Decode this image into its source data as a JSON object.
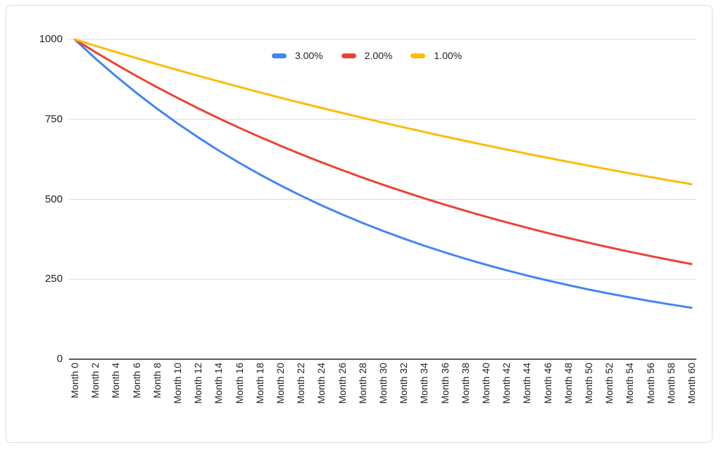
{
  "colors": {
    "background": "#ffffff",
    "card_border": "#dadce0",
    "gridline": "#d9d9d9",
    "axis_line": "#424242",
    "tick_label": "#222222",
    "series_blue": "#4285f4",
    "series_red": "#ea4335",
    "series_yellow": "#fbbc04"
  },
  "chart_data": {
    "type": "line",
    "title": "",
    "xlabel": "",
    "ylabel": "",
    "grid": true,
    "legend_position": "top-center",
    "ylim": [
      0,
      1000
    ],
    "yticks": [
      0,
      250,
      500,
      750,
      1000
    ],
    "categories": [
      "Month 0",
      "Month 2",
      "Month 4",
      "Month 6",
      "Month 8",
      "Month 10",
      "Month 12",
      "Month 14",
      "Month 16",
      "Month 18",
      "Month 20",
      "Month 22",
      "Month 24",
      "Month 26",
      "Month 28",
      "Month 30",
      "Month 32",
      "Month 34",
      "Month 36",
      "Month 38",
      "Month 40",
      "Month 42",
      "Month 44",
      "Month 46",
      "Month 48",
      "Month 50",
      "Month 52",
      "Month 54",
      "Month 56",
      "Month 58",
      "Month 60"
    ],
    "series": [
      {
        "name": "3.00%",
        "color": "#4285f4",
        "values": [
          1000,
          940.9,
          885.3,
          833.0,
          783.7,
          737.4,
          693.8,
          652.8,
          614.3,
          578.0,
          543.8,
          511.7,
          481.4,
          453.0,
          426.2,
          401.0,
          377.3,
          355.0,
          334.0,
          314.3,
          295.7,
          278.2,
          261.8,
          246.3,
          231.8,
          218.1,
          205.2,
          193.1,
          181.6,
          170.9,
          160.8
        ]
      },
      {
        "name": "2.00%",
        "color": "#ea4335",
        "values": [
          1000,
          960.4,
          922.4,
          885.8,
          850.8,
          817.1,
          784.7,
          753.6,
          723.8,
          695.1,
          667.6,
          641.2,
          615.8,
          591.4,
          568.0,
          545.5,
          523.9,
          503.1,
          483.2,
          464.1,
          445.7,
          428.1,
          411.1,
          394.8,
          379.2,
          364.2,
          349.7,
          335.9,
          322.6,
          309.8,
          297.6
        ]
      },
      {
        "name": "1.00%",
        "color": "#fbbc04",
        "values": [
          1000,
          980.1,
          960.6,
          941.5,
          922.7,
          904.4,
          886.4,
          868.7,
          851.5,
          834.5,
          817.9,
          801.6,
          785.7,
          770.0,
          754.7,
          739.7,
          725.0,
          710.6,
          696.4,
          682.6,
          669.0,
          655.7,
          642.6,
          629.8,
          617.3,
          605.0,
          593.0,
          581.2,
          569.6,
          558.3,
          547.2
        ]
      }
    ]
  }
}
